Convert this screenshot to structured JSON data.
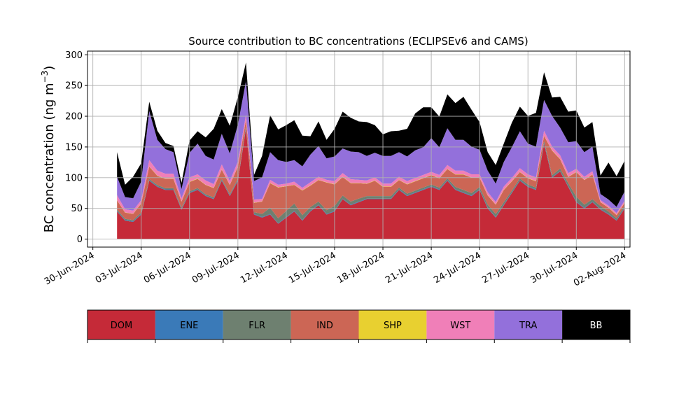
{
  "chart_data": {
    "type": "area",
    "stacked": true,
    "title": "Source contribution to BC concentrations (ECLIPSEv6 and CAMS)",
    "ylabel_main": "BC concentration (ng m",
    "ylabel_sup": "−3",
    "ylabel_close": ")",
    "xlabel": "",
    "ylim": [
      -13,
      306
    ],
    "xlim": [
      "2024-06-29T16:00",
      "2024-08-02T08:00"
    ],
    "yticks": [
      0,
      50,
      100,
      150,
      200,
      250,
      300
    ],
    "ytick_labels": [
      "0",
      "50",
      "100",
      "150",
      "200",
      "250",
      "300"
    ],
    "xticks": [
      "2024-06-30",
      "2024-07-03",
      "2024-07-06",
      "2024-07-09",
      "2024-07-12",
      "2024-07-15",
      "2024-07-18",
      "2024-07-21",
      "2024-07-24",
      "2024-07-27",
      "2024-07-30",
      "2024-08-02"
    ],
    "xtick_labels": [
      "30-Jun-2024",
      "03-Jul-2024",
      "06-Jul-2024",
      "09-Jul-2024",
      "12-Jul-2024",
      "15-Jul-2024",
      "18-Jul-2024",
      "21-Jul-2024",
      "24-Jul-2024",
      "27-Jul-2024",
      "30-Jul-2024",
      "02-Aug-2024"
    ],
    "grid": true,
    "x": [
      "2024-07-01T12:00",
      "2024-07-02T00:00",
      "2024-07-02T12:00",
      "2024-07-03T00:00",
      "2024-07-03T12:00",
      "2024-07-04T00:00",
      "2024-07-04T12:00",
      "2024-07-05T00:00",
      "2024-07-05T12:00",
      "2024-07-06T00:00",
      "2024-07-06T12:00",
      "2024-07-07T00:00",
      "2024-07-07T12:00",
      "2024-07-08T00:00",
      "2024-07-08T12:00",
      "2024-07-09T00:00",
      "2024-07-09T12:00",
      "2024-07-10T00:00",
      "2024-07-10T12:00",
      "2024-07-11T00:00",
      "2024-07-11T12:00",
      "2024-07-12T00:00",
      "2024-07-12T12:00",
      "2024-07-13T00:00",
      "2024-07-13T12:00",
      "2024-07-14T00:00",
      "2024-07-14T12:00",
      "2024-07-15T00:00",
      "2024-07-15T12:00",
      "2024-07-16T00:00",
      "2024-07-16T12:00",
      "2024-07-17T00:00",
      "2024-07-17T12:00",
      "2024-07-18T00:00",
      "2024-07-18T12:00",
      "2024-07-19T00:00",
      "2024-07-19T12:00",
      "2024-07-20T00:00",
      "2024-07-20T12:00",
      "2024-07-21T00:00",
      "2024-07-21T12:00",
      "2024-07-22T00:00",
      "2024-07-22T12:00",
      "2024-07-23T00:00",
      "2024-07-23T12:00",
      "2024-07-24T00:00",
      "2024-07-24T12:00",
      "2024-07-25T00:00",
      "2024-07-25T12:00",
      "2024-07-26T00:00",
      "2024-07-26T12:00",
      "2024-07-27T00:00",
      "2024-07-27T12:00",
      "2024-07-28T00:00",
      "2024-07-28T12:00",
      "2024-07-29T00:00",
      "2024-07-29T12:00",
      "2024-07-30T00:00",
      "2024-07-30T12:00",
      "2024-07-31T00:00",
      "2024-07-31T12:00",
      "2024-08-01T00:00",
      "2024-08-01T12:00",
      "2024-08-02T00:00"
    ],
    "series": [
      {
        "name": "DOM",
        "color": "#c52a38",
        "values": [
          45,
          30,
          28,
          40,
          95,
          85,
          80,
          80,
          48,
          75,
          80,
          70,
          65,
          95,
          70,
          95,
          180,
          40,
          35,
          40,
          25,
          35,
          45,
          30,
          45,
          55,
          40,
          45,
          65,
          55,
          60,
          65,
          65,
          65,
          65,
          80,
          70,
          75,
          80,
          85,
          80,
          95,
          80,
          75,
          70,
          80,
          50,
          35,
          55,
          75,
          95,
          85,
          80,
          155,
          100,
          110,
          85,
          60,
          50,
          60,
          48,
          40,
          30,
          50
        ]
      },
      {
        "name": "ENE",
        "color": "#3a7ab8",
        "values": [
          1,
          1,
          1,
          1,
          1,
          1,
          1,
          1,
          1,
          1,
          1,
          1,
          1,
          1,
          1,
          1,
          2,
          1,
          1,
          1,
          1,
          1,
          1,
          1,
          1,
          1,
          1,
          1,
          1,
          1,
          1,
          1,
          1,
          1,
          1,
          1,
          1,
          1,
          1,
          1,
          1,
          1,
          1,
          1,
          1,
          1,
          1,
          1,
          1,
          1,
          1,
          1,
          1,
          2,
          1,
          1,
          1,
          1,
          1,
          1,
          1,
          1,
          1,
          1
        ]
      },
      {
        "name": "FLR",
        "color": "#6e8070",
        "values": [
          2,
          2,
          2,
          2,
          2,
          2,
          2,
          2,
          2,
          2,
          2,
          2,
          2,
          2,
          2,
          2,
          2,
          3,
          5,
          10,
          8,
          10,
          12,
          8,
          6,
          5,
          6,
          8,
          5,
          5,
          5,
          4,
          4,
          4,
          4,
          3,
          3,
          3,
          3,
          3,
          3,
          3,
          4,
          4,
          4,
          4,
          5,
          5,
          4,
          3,
          3,
          3,
          3,
          3,
          3,
          4,
          5,
          8,
          5,
          4,
          5,
          4,
          3,
          3
        ]
      },
      {
        "name": "IND",
        "color": "#cc6655",
        "values": [
          15,
          10,
          10,
          15,
          20,
          15,
          15,
          15,
          10,
          15,
          15,
          15,
          15,
          15,
          15,
          20,
          10,
          15,
          20,
          40,
          50,
          40,
          30,
          40,
          35,
          35,
          45,
          35,
          30,
          30,
          25,
          20,
          25,
          15,
          15,
          12,
          15,
          15,
          15,
          15,
          15,
          15,
          20,
          25,
          25,
          15,
          15,
          15,
          20,
          15,
          10,
          10,
          10,
          8,
          40,
          15,
          10,
          40,
          40,
          40,
          6,
          6,
          5,
          5
        ]
      },
      {
        "name": "SHP",
        "color": "#e8d030",
        "values": [
          0.5,
          0.5,
          0.5,
          0.5,
          0.5,
          0.5,
          0.5,
          0.5,
          0.5,
          0.5,
          0.5,
          0.5,
          0.5,
          0.5,
          0.5,
          0.5,
          0.5,
          0.5,
          0.5,
          0.5,
          0.5,
          0.5,
          0.5,
          0.5,
          0.5,
          0.5,
          0.5,
          0.5,
          0.5,
          0.5,
          0.5,
          0.5,
          0.5,
          0.5,
          0.5,
          0.5,
          0.5,
          0.5,
          0.5,
          0.5,
          0.5,
          0.5,
          0.5,
          0.5,
          0.5,
          0.5,
          0.5,
          0.5,
          0.5,
          0.5,
          0.5,
          0.5,
          0.5,
          0.5,
          0.5,
          0.5,
          0.5,
          0.5,
          0.5,
          0.5,
          0.5,
          0.5,
          0.5,
          0.5
        ]
      },
      {
        "name": "WST",
        "color": "#f07fb8",
        "values": [
          8,
          5,
          5,
          5,
          10,
          8,
          8,
          8,
          5,
          7,
          7,
          7,
          6,
          8,
          6,
          8,
          8,
          5,
          4,
          5,
          4,
          4,
          5,
          4,
          5,
          5,
          4,
          5,
          6,
          6,
          5,
          5,
          5,
          5,
          5,
          5,
          5,
          5,
          5,
          5,
          5,
          6,
          6,
          6,
          5,
          5,
          5,
          4,
          5,
          5,
          6,
          6,
          6,
          8,
          6,
          6,
          6,
          5,
          5,
          5,
          3,
          3,
          3,
          3
        ]
      },
      {
        "name": "TRA",
        "color": "#9370db",
        "values": [
          30,
          20,
          20,
          30,
          80,
          50,
          40,
          35,
          15,
          40,
          50,
          40,
          40,
          50,
          45,
          60,
          55,
          30,
          35,
          45,
          40,
          35,
          35,
          35,
          45,
          50,
          35,
          40,
          40,
          45,
          45,
          40,
          40,
          45,
          45,
          40,
          40,
          45,
          45,
          55,
          45,
          60,
          50,
          50,
          45,
          40,
          35,
          30,
          40,
          50,
          60,
          50,
          50,
          50,
          50,
          45,
          50,
          45,
          40,
          40,
          10,
          10,
          10,
          15
        ]
      },
      {
        "name": "BB",
        "color": "#000000",
        "values": [
          40,
          20,
          35,
          30,
          15,
          15,
          10,
          10,
          10,
          20,
          20,
          30,
          50,
          40,
          45,
          45,
          30,
          10,
          35,
          60,
          50,
          60,
          65,
          50,
          30,
          40,
          30,
          45,
          60,
          55,
          50,
          55,
          45,
          35,
          40,
          35,
          45,
          60,
          65,
          50,
          50,
          55,
          60,
          70,
          60,
          45,
          30,
          30,
          30,
          40,
          40,
          45,
          55,
          45,
          30,
          50,
          50,
          50,
          40,
          40,
          30,
          60,
          50,
          50
        ]
      }
    ],
    "legend_labels": [
      "DOM",
      "ENE",
      "FLR",
      "IND",
      "SHP",
      "WST",
      "TRA",
      "BB"
    ],
    "legend_placement": "bottom colorbar"
  }
}
